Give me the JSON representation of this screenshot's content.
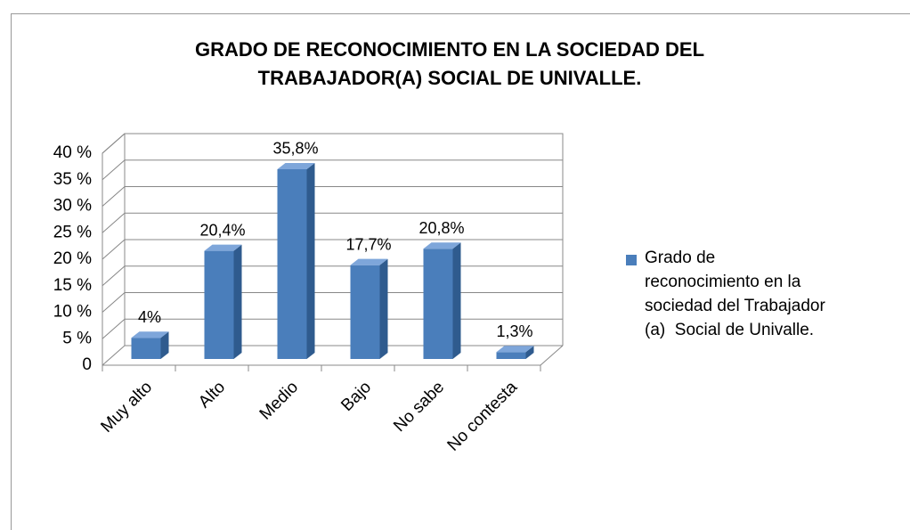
{
  "chart_data": {
    "type": "bar3d",
    "title": [
      "GRADO DE RECONOCIMIENTO  EN LA SOCIEDAD DEL",
      "TRABAJADOR(A)  SOCIAL DE UNIVALLE."
    ],
    "categories": [
      "Muy alto",
      "Alto",
      "Medio",
      "Bajo",
      "No sabe",
      "No contesta"
    ],
    "series": [
      {
        "name": "Grado de reconocimiento en la sociedad del Trabajador (a)  Social de Univalle.",
        "color": "#4a7ebb",
        "values": [
          4,
          20.4,
          35.8,
          17.7,
          20.8,
          1.3
        ],
        "value_labels": [
          "4%",
          "20,4%",
          "35,8%",
          "17,7%",
          "20,8%",
          "1,3%"
        ]
      }
    ],
    "ylim": [
      0,
      40
    ],
    "yticks": [
      0,
      {
        "value": 5,
        "label": "5 %"
      },
      {
        "value": 10,
        "label": "10 %"
      },
      {
        "value": 15,
        "label": "15 %"
      },
      {
        "value": 20,
        "label": "20 %"
      },
      {
        "value": 25,
        "label": "25 %"
      },
      {
        "value": 30,
        "label": "30 %"
      },
      {
        "value": 35,
        "label": "35 %"
      },
      {
        "value": 40,
        "label": "40 %"
      }
    ],
    "grid": true,
    "legend": "right"
  }
}
